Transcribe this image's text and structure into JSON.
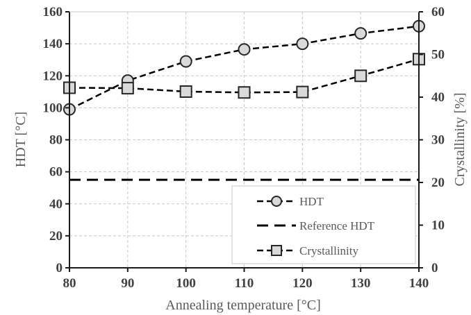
{
  "chart_data": {
    "type": "line",
    "x": [
      80,
      90,
      100,
      110,
      120,
      130,
      140
    ],
    "xlabel": "Annealing temperature [°C]",
    "ylabel": "HDT [°C]",
    "y2label": "Crystallinity [%]",
    "xlim": [
      80,
      140
    ],
    "ylim": [
      0,
      160
    ],
    "y2lim": [
      0,
      60
    ],
    "x_ticks": [
      "80",
      "90",
      "100",
      "110",
      "120",
      "130",
      "140"
    ],
    "y_ticks": [
      "0",
      "20",
      "40",
      "60",
      "80",
      "100",
      "120",
      "140",
      "160"
    ],
    "y2_ticks": [
      "0",
      "10",
      "20",
      "30",
      "40",
      "50",
      "60"
    ],
    "grid": true,
    "legend_position": "bottom-right",
    "series": [
      {
        "name": "HDT",
        "axis": "left",
        "marker": "circle",
        "line": "dashed",
        "values": [
          99,
          117,
          129,
          136.5,
          140,
          146.5,
          151
        ]
      },
      {
        "name": "Reference HDT",
        "axis": "left",
        "marker": "none",
        "line": "long-dashed",
        "values": [
          55,
          55,
          55,
          55,
          55,
          55,
          55
        ]
      },
      {
        "name": "Crystallinity",
        "axis": "right",
        "marker": "square",
        "line": "dashed",
        "values": [
          42.2,
          42.1,
          41.3,
          41.1,
          41.2,
          45.0,
          48.9
        ]
      }
    ],
    "colors": {
      "axis": "#1a1a1a",
      "grid": "#c8c8c8",
      "marker_fill": "#d9d9d9",
      "text": "#404040"
    }
  }
}
